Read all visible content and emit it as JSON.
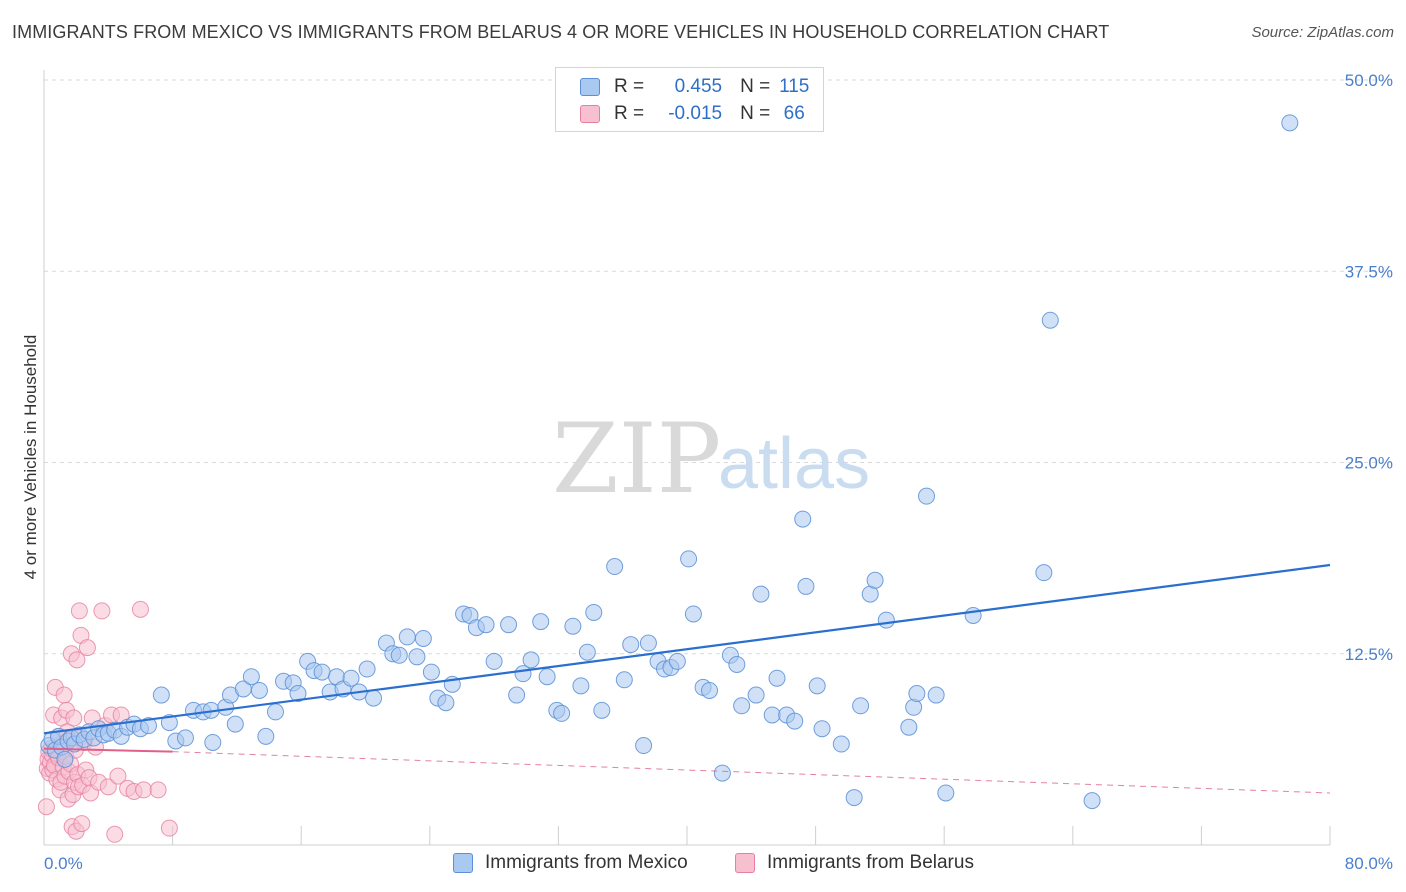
{
  "header": {
    "title": "IMMIGRANTS FROM MEXICO VS IMMIGRANTS FROM BELARUS 4 OR MORE VEHICLES IN HOUSEHOLD CORRELATION CHART",
    "source": "Source: ZipAtlas.com"
  },
  "watermark": {
    "zip": "ZIP",
    "atlas": "atlas"
  },
  "legend": {
    "rows": [
      {
        "r_label": "R =",
        "r_value": "0.455",
        "n_label": "N =",
        "n_value": "115",
        "color": "#a9c9f0",
        "border": "#5b8fd6"
      },
      {
        "r_label": "R =",
        "r_value": "-0.015",
        "n_label": "N =",
        "n_value": "66",
        "color": "#f7c0d0",
        "border": "#e67fa0"
      }
    ]
  },
  "bottom_legend": {
    "mexico": "Immigrants from Mexico",
    "belarus": "Immigrants from Belarus"
  },
  "colors": {
    "mexico_fill": "#a9c9f0",
    "mexico_stroke": "#5b8fd6",
    "mexico_line": "#2a6fd0",
    "belarus_fill": "#f7c0d0",
    "belarus_stroke": "#e67fa0",
    "belarus_line": "#e0608a",
    "grid": "#d9d9d9",
    "tick_text": "#4a7fcb"
  },
  "chart_data": {
    "type": "scatter",
    "title": "IMMIGRANTS FROM MEXICO VS IMMIGRANTS FROM BELARUS 4 OR MORE VEHICLES IN HOUSEHOLD CORRELATION CHART",
    "xlabel": "",
    "ylabel": "4 or more Vehicles in Household",
    "xlim": [
      0,
      80
    ],
    "ylim": [
      0,
      50
    ],
    "x_ticks": [
      "0.0%",
      "80.0%"
    ],
    "y_ticks": [
      {
        "value": 12.5,
        "label": "12.5%"
      },
      {
        "value": 25.0,
        "label": "25.0%"
      },
      {
        "value": 37.5,
        "label": "37.5%"
      },
      {
        "value": 50.0,
        "label": "50.0%"
      }
    ],
    "grid": true,
    "series": [
      {
        "name": "Immigrants from Mexico",
        "trend": {
          "x": [
            0,
            80
          ],
          "y": [
            7.3,
            18.3
          ],
          "style": "solid"
        },
        "points": [
          [
            0.3,
            6.5
          ],
          [
            0.5,
            6.9
          ],
          [
            0.7,
            6.2
          ],
          [
            0.9,
            7.1
          ],
          [
            1.1,
            6.4
          ],
          [
            1.3,
            5.6
          ],
          [
            1.5,
            6.8
          ],
          [
            1.7,
            7.0
          ],
          [
            1.9,
            6.6
          ],
          [
            2.2,
            7.2
          ],
          [
            2.5,
            6.9
          ],
          [
            2.8,
            7.4
          ],
          [
            3.1,
            7.0
          ],
          [
            3.4,
            7.6
          ],
          [
            3.7,
            7.2
          ],
          [
            4.0,
            7.3
          ],
          [
            4.4,
            7.5
          ],
          [
            4.8,
            7.1
          ],
          [
            5.2,
            7.7
          ],
          [
            5.6,
            7.9
          ],
          [
            6.0,
            7.6
          ],
          [
            6.5,
            7.8
          ],
          [
            7.3,
            9.8
          ],
          [
            7.8,
            8.0
          ],
          [
            8.2,
            6.8
          ],
          [
            8.8,
            7.0
          ],
          [
            9.3,
            8.8
          ],
          [
            9.9,
            8.7
          ],
          [
            10.4,
            8.8
          ],
          [
            10.5,
            6.7
          ],
          [
            11.3,
            9.0
          ],
          [
            11.6,
            9.8
          ],
          [
            11.9,
            7.9
          ],
          [
            12.4,
            10.2
          ],
          [
            12.9,
            11.0
          ],
          [
            13.4,
            10.1
          ],
          [
            13.8,
            7.1
          ],
          [
            14.4,
            8.7
          ],
          [
            14.9,
            10.7
          ],
          [
            15.5,
            10.6
          ],
          [
            15.8,
            9.9
          ],
          [
            16.4,
            12.0
          ],
          [
            16.8,
            11.4
          ],
          [
            17.3,
            11.3
          ],
          [
            17.8,
            10.0
          ],
          [
            18.2,
            11.0
          ],
          [
            18.6,
            10.2
          ],
          [
            19.1,
            10.9
          ],
          [
            19.6,
            10.0
          ],
          [
            20.1,
            11.5
          ],
          [
            20.5,
            9.6
          ],
          [
            21.3,
            13.2
          ],
          [
            21.7,
            12.5
          ],
          [
            22.1,
            12.4
          ],
          [
            22.6,
            13.6
          ],
          [
            23.2,
            12.3
          ],
          [
            23.6,
            13.5
          ],
          [
            24.1,
            11.3
          ],
          [
            24.5,
            9.6
          ],
          [
            25.0,
            9.3
          ],
          [
            25.4,
            10.5
          ],
          [
            26.1,
            15.1
          ],
          [
            26.5,
            15.0
          ],
          [
            26.9,
            14.2
          ],
          [
            27.5,
            14.4
          ],
          [
            28.0,
            12.0
          ],
          [
            28.9,
            14.4
          ],
          [
            29.4,
            9.8
          ],
          [
            29.8,
            11.2
          ],
          [
            30.3,
            12.1
          ],
          [
            30.9,
            14.6
          ],
          [
            31.3,
            11.0
          ],
          [
            31.9,
            8.8
          ],
          [
            32.2,
            8.6
          ],
          [
            32.9,
            14.3
          ],
          [
            33.4,
            10.4
          ],
          [
            33.8,
            12.6
          ],
          [
            34.2,
            15.2
          ],
          [
            34.7,
            8.8
          ],
          [
            35.5,
            18.2
          ],
          [
            36.1,
            10.8
          ],
          [
            36.5,
            13.1
          ],
          [
            37.3,
            6.5
          ],
          [
            37.6,
            13.2
          ],
          [
            38.2,
            12.0
          ],
          [
            38.6,
            11.5
          ],
          [
            39.0,
            11.6
          ],
          [
            39.4,
            12.0
          ],
          [
            40.1,
            18.7
          ],
          [
            40.4,
            15.1
          ],
          [
            41.0,
            10.3
          ],
          [
            41.4,
            10.1
          ],
          [
            42.2,
            4.7
          ],
          [
            42.7,
            12.4
          ],
          [
            43.1,
            11.8
          ],
          [
            43.4,
            9.1
          ],
          [
            44.3,
            9.8
          ],
          [
            44.6,
            16.4
          ],
          [
            45.3,
            8.5
          ],
          [
            45.6,
            10.9
          ],
          [
            46.2,
            8.5
          ],
          [
            46.7,
            8.1
          ],
          [
            47.2,
            21.3
          ],
          [
            47.4,
            16.9
          ],
          [
            48.1,
            10.4
          ],
          [
            48.4,
            7.6
          ],
          [
            49.6,
            6.6
          ],
          [
            50.4,
            3.1
          ],
          [
            50.8,
            9.1
          ],
          [
            51.4,
            16.4
          ],
          [
            51.7,
            17.3
          ],
          [
            52.4,
            14.7
          ],
          [
            53.8,
            7.7
          ],
          [
            54.1,
            9.0
          ],
          [
            54.3,
            9.9
          ],
          [
            54.9,
            22.8
          ],
          [
            55.5,
            9.8
          ],
          [
            56.1,
            3.4
          ],
          [
            57.8,
            15.0
          ],
          [
            62.6,
            34.3
          ],
          [
            62.2,
            17.8
          ],
          [
            65.2,
            2.9
          ],
          [
            77.5,
            47.2
          ]
        ]
      },
      {
        "name": "Immigrants from Belarus",
        "trend": {
          "x": [
            0,
            8
          ],
          "y": [
            6.3,
            6.1
          ],
          "style": "solid"
        },
        "trend_ext": {
          "x": [
            8,
            80
          ],
          "y": [
            6.1,
            3.4
          ],
          "style": "dashed"
        },
        "points": [
          [
            0.15,
            2.5
          ],
          [
            0.2,
            5.0
          ],
          [
            0.25,
            5.6
          ],
          [
            0.3,
            6.1
          ],
          [
            0.35,
            4.7
          ],
          [
            0.4,
            5.4
          ],
          [
            0.45,
            6.3
          ],
          [
            0.5,
            5.9
          ],
          [
            0.55,
            4.9
          ],
          [
            0.6,
            8.5
          ],
          [
            0.65,
            5.2
          ],
          [
            0.7,
            10.3
          ],
          [
            0.75,
            6.0
          ],
          [
            0.8,
            4.3
          ],
          [
            0.9,
            5.7
          ],
          [
            0.95,
            7.1
          ],
          [
            1.0,
            3.6
          ],
          [
            1.05,
            4.1
          ],
          [
            1.1,
            8.3
          ],
          [
            1.15,
            6.6
          ],
          [
            1.2,
            5.1
          ],
          [
            1.25,
            9.8
          ],
          [
            1.3,
            4.5
          ],
          [
            1.35,
            5.8
          ],
          [
            1.4,
            8.8
          ],
          [
            1.45,
            7.4
          ],
          [
            1.5,
            3.0
          ],
          [
            1.55,
            4.8
          ],
          [
            1.6,
            6.9
          ],
          [
            1.65,
            5.3
          ],
          [
            1.7,
            12.5
          ],
          [
            1.75,
            1.2
          ],
          [
            1.8,
            3.3
          ],
          [
            1.85,
            8.3
          ],
          [
            1.9,
            4.1
          ],
          [
            1.95,
            6.2
          ],
          [
            2.0,
            0.9
          ],
          [
            2.05,
            12.1
          ],
          [
            2.1,
            4.6
          ],
          [
            2.15,
            3.8
          ],
          [
            2.2,
            15.3
          ],
          [
            2.25,
            7.0
          ],
          [
            2.3,
            13.7
          ],
          [
            2.35,
            1.4
          ],
          [
            2.4,
            3.9
          ],
          [
            2.5,
            6.7
          ],
          [
            2.6,
            4.9
          ],
          [
            2.7,
            12.9
          ],
          [
            2.8,
            4.4
          ],
          [
            2.9,
            3.4
          ],
          [
            3.0,
            8.3
          ],
          [
            3.2,
            6.4
          ],
          [
            3.4,
            4.1
          ],
          [
            3.6,
            15.3
          ],
          [
            3.8,
            7.8
          ],
          [
            4.0,
            3.8
          ],
          [
            4.2,
            8.5
          ],
          [
            4.4,
            0.7
          ],
          [
            4.6,
            4.5
          ],
          [
            4.8,
            8.5
          ],
          [
            5.2,
            3.7
          ],
          [
            5.6,
            3.5
          ],
          [
            6.0,
            15.4
          ],
          [
            6.2,
            3.6
          ],
          [
            7.1,
            3.6
          ],
          [
            7.8,
            1.1
          ]
        ]
      }
    ]
  }
}
